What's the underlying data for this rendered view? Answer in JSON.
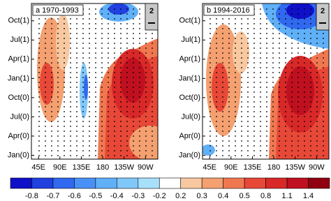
{
  "chart_data": [
    {
      "type": "contour",
      "panel_label": "a  1970-1993",
      "vector_ref": 2,
      "xlim": [
        30,
        296
      ],
      "xticks": [
        {
          "value": 45,
          "label": "45E"
        },
        {
          "value": 90,
          "label": "90E"
        },
        {
          "value": 135,
          "label": "135E"
        },
        180,
        {
          "value": 225,
          "label": "135W"
        },
        {
          "value": 270,
          "label": "90W"
        }
      ],
      "ylim": [
        -0.6,
        23.7
      ],
      "yticks": [
        {
          "value": 0,
          "label": "Jan(0)"
        },
        {
          "value": 3,
          "label": "Apr(0)"
        },
        {
          "value": 6,
          "label": "Jul(0)"
        },
        {
          "value": 9,
          "label": "Oct(0)"
        },
        {
          "value": 12,
          "label": "Jan(1)"
        },
        {
          "value": 15,
          "label": "Apr(1)"
        },
        {
          "value": 18,
          "label": "Jul(1)"
        },
        {
          "value": 21,
          "label": "Oct(1)"
        }
      ]
    },
    {
      "type": "contour",
      "panel_label": "b  1994-2016",
      "vector_ref": 2,
      "xlim": [
        30,
        296
      ],
      "xticks": [
        {
          "value": 45,
          "label": "45E"
        },
        {
          "value": 90,
          "label": "90E"
        },
        {
          "value": 135,
          "label": "135E"
        },
        180,
        {
          "value": 225,
          "label": "135W"
        },
        {
          "value": 270,
          "label": "90W"
        }
      ],
      "ylim": [
        -0.6,
        23.7
      ],
      "yticks": [
        {
          "value": 0,
          "label": "Jan(0)"
        },
        {
          "value": 3,
          "label": "Apr(0)"
        },
        {
          "value": 6,
          "label": "Jul(0)"
        },
        {
          "value": 9,
          "label": "Oct(0)"
        },
        {
          "value": 12,
          "label": "Jan(1)"
        },
        {
          "value": 15,
          "label": "Apr(1)"
        },
        {
          "value": 18,
          "label": "Jul(1)"
        },
        {
          "value": 21,
          "label": "Oct(1)"
        }
      ]
    }
  ],
  "colorbar": {
    "levels": [
      -0.8,
      -0.7,
      -0.6,
      -0.5,
      -0.4,
      -0.3,
      -0.2,
      0.2,
      0.3,
      0.4,
      0.5,
      0.8,
      1.1,
      1.4
    ],
    "colors": [
      "#1010c8",
      "#2040e0",
      "#3068f0",
      "#4890f5",
      "#60b0f8",
      "#80c8fa",
      "#a8e0fc",
      "#ffffff",
      "#f8c8a0",
      "#f4a070",
      "#f07850",
      "#e84838",
      "#d82828",
      "#c01020",
      "#900010"
    ]
  }
}
